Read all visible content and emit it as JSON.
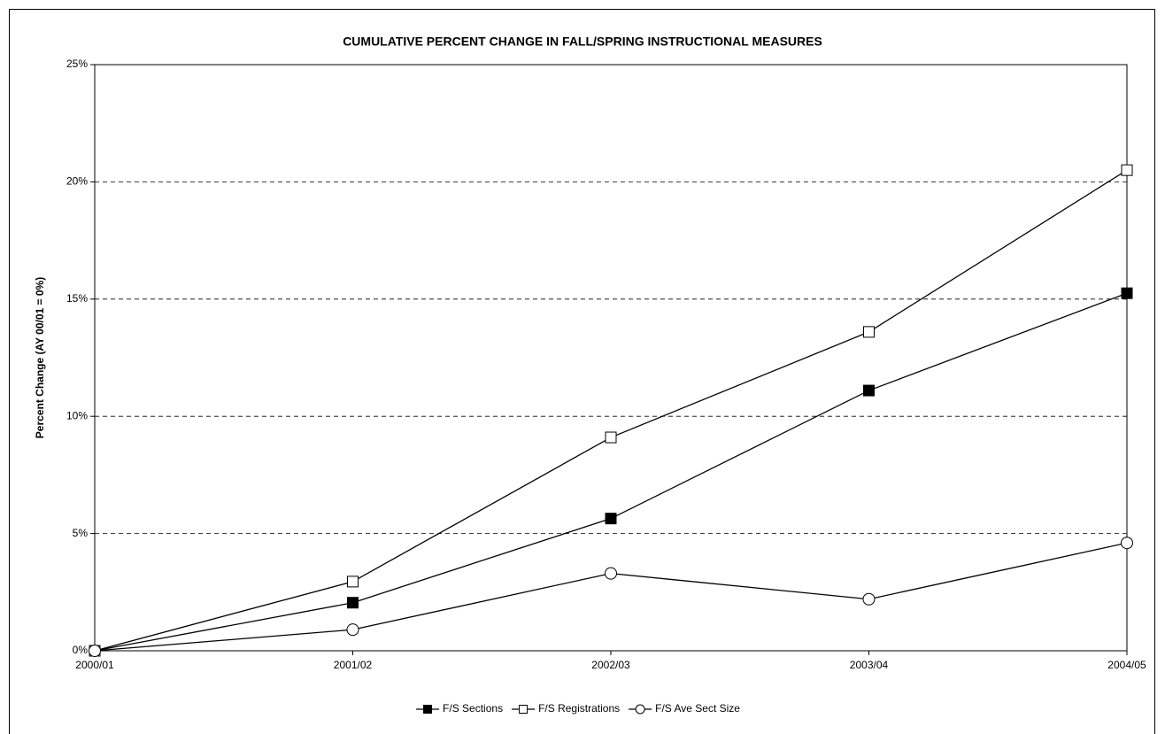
{
  "chart_data": {
    "type": "line",
    "title": "CUMULATIVE PERCENT CHANGE IN FALL/SPRING INSTRUCTIONAL MEASURES",
    "y_label": "Percent Change (AY 00/01 = 0%)",
    "categories": [
      "2000/01",
      "2001/02",
      "2002/03",
      "2003/04",
      "2004/05"
    ],
    "series": [
      {
        "name": "F/S Sections",
        "color": "#000000",
        "marker": "square",
        "marker_fill": "#000000",
        "values": [
          0,
          2.05,
          5.64,
          11.1,
          15.25
        ]
      },
      {
        "name": "F/S Registrations",
        "color": "#000000",
        "marker": "square",
        "marker_fill": "#ffffff",
        "values": [
          0,
          2.95,
          9.1,
          13.6,
          20.5
        ]
      },
      {
        "name": "F/S Ave Sect Size",
        "color": "#000000",
        "marker": "circle",
        "marker_fill": "#ffffff",
        "values": [
          0,
          0.9,
          3.3,
          2.2,
          4.6
        ]
      }
    ],
    "ylim": [
      0,
      25
    ],
    "yticks": [
      {
        "value": 0,
        "label": "0%"
      },
      {
        "value": 5,
        "label": "5%"
      },
      {
        "value": 10,
        "label": "10%"
      },
      {
        "value": 15,
        "label": "15%"
      },
      {
        "value": 20,
        "label": "20%"
      },
      {
        "value": 25,
        "label": "25%"
      }
    ],
    "grid": true,
    "legend": "bottom"
  }
}
